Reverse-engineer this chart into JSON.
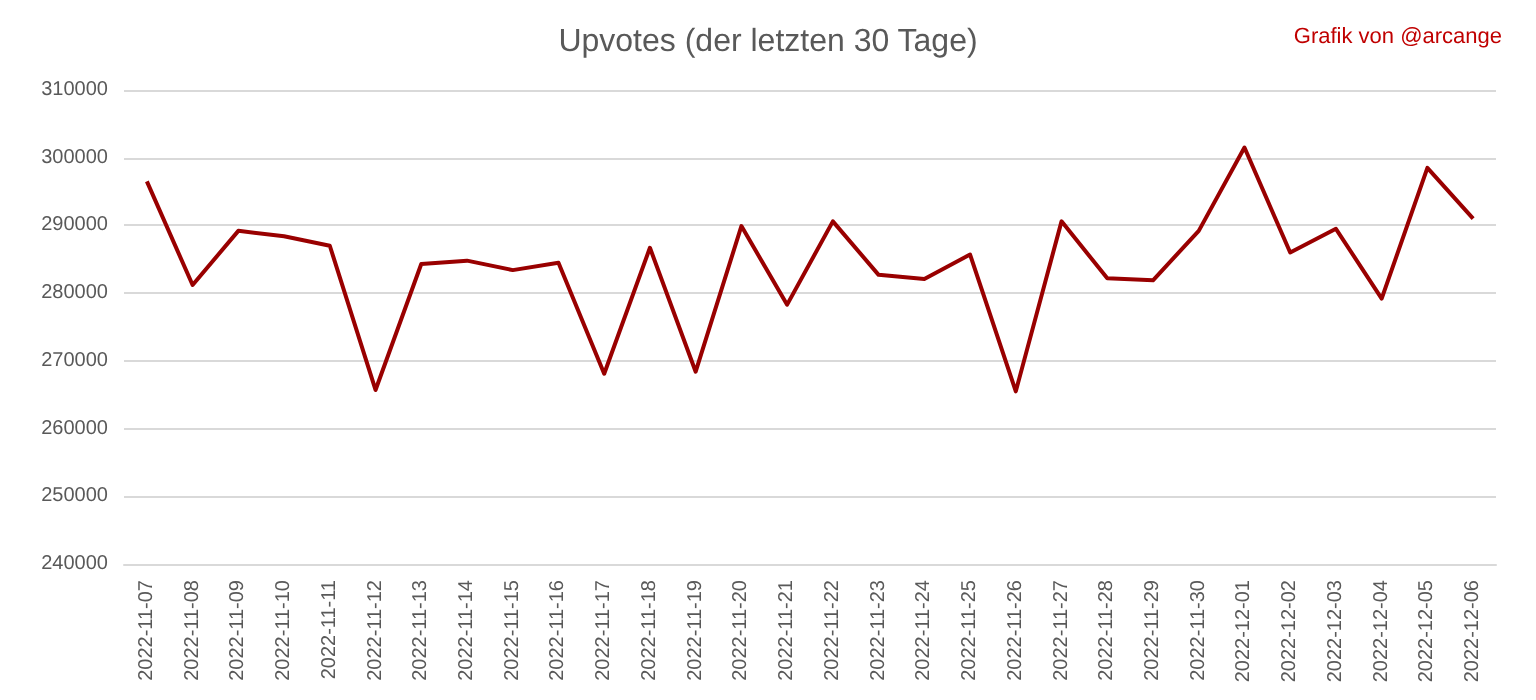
{
  "chart_data": {
    "type": "line",
    "title": "Upvotes (der letzten 30 Tage)",
    "annotations": [
      "Grafik von @arcange"
    ],
    "categories": [
      "2022-11-07",
      "2022-11-08",
      "2022-11-09",
      "2022-11-10",
      "2022-11-11",
      "2022-11-12",
      "2022-11-13",
      "2022-11-14",
      "2022-11-15",
      "2022-11-16",
      "2022-11-17",
      "2022-11-18",
      "2022-11-19",
      "2022-11-20",
      "2022-11-21",
      "2022-11-22",
      "2022-11-23",
      "2022-11-24",
      "2022-11-25",
      "2022-11-26",
      "2022-11-27",
      "2022-11-28",
      "2022-11-29",
      "2022-11-30",
      "2022-12-01",
      "2022-12-02",
      "2022-12-03",
      "2022-12-04",
      "2022-12-05",
      "2022-12-06"
    ],
    "series": [
      {
        "color": "#990000",
        "values": [
          296500,
          281200,
          289200,
          288400,
          287000,
          265700,
          284300,
          284800,
          283400,
          284500,
          268100,
          286700,
          268400,
          289900,
          278300,
          290600,
          282700,
          282100,
          285700,
          265500,
          290600,
          282200,
          281900,
          289200,
          301500,
          286000,
          289500,
          279200,
          298500,
          291000
        ]
      }
    ],
    "ylim": [
      240000,
      310000
    ],
    "yticks": [
      240000,
      250000,
      260000,
      270000,
      280000,
      290000,
      300000,
      310000
    ],
    "grid": "y",
    "marker": "none",
    "line_style": "solid"
  }
}
